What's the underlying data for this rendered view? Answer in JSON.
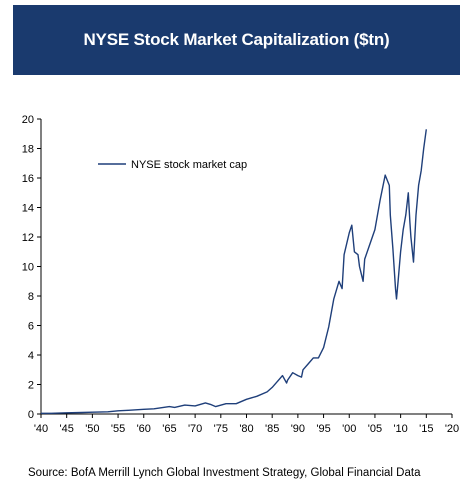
{
  "header": {
    "title": "NYSE Stock Market Capitalization ($tn)"
  },
  "footer": {
    "source": "Source: BofA Merrill Lynch Global Investment Strategy, Global Financial Data"
  },
  "colors": {
    "banner": "#1a3a6e",
    "series_line": "#1f3f7a",
    "axis": "#000000"
  },
  "chart_data": {
    "type": "line",
    "title": "NYSE Stock Market Capitalization ($tn)",
    "xlabel": "",
    "ylabel": "",
    "xlim": [
      1940,
      2020
    ],
    "ylim": [
      0,
      20
    ],
    "grid": false,
    "legend_position": "top-left",
    "x_tick_labels": [
      "'40",
      "'45",
      "'50",
      "'55",
      "'60",
      "'65",
      "'70",
      "'75",
      "'80",
      "'85",
      "'90",
      "'95",
      "'00",
      "'05",
      "'10",
      "'15",
      "'20"
    ],
    "x_ticks": [
      1940,
      1945,
      1950,
      1955,
      1960,
      1965,
      1970,
      1975,
      1980,
      1985,
      1990,
      1995,
      2000,
      2005,
      2010,
      2015,
      2020
    ],
    "y_ticks": [
      0,
      2,
      4,
      6,
      8,
      10,
      12,
      14,
      16,
      18,
      20
    ],
    "series": [
      {
        "name": "NYSE stock market cap",
        "x": [
          1940,
          1942,
          1945,
          1948,
          1950,
          1953,
          1955,
          1957,
          1960,
          1962,
          1965,
          1966,
          1968,
          1970,
          1972,
          1973,
          1974,
          1976,
          1978,
          1980,
          1981,
          1982,
          1984,
          1985,
          1986,
          1987,
          1987.8,
          1988,
          1989,
          1990,
          1990.7,
          1991,
          1992,
          1993,
          1994,
          1995,
          1996,
          1997,
          1998,
          1998.6,
          1999,
          2000,
          2000.5,
          2001,
          2001.7,
          2002,
          2002.7,
          2003,
          2004,
          2005,
          2006,
          2007,
          2007.8,
          2008,
          2008.5,
          2009.0,
          2009.2,
          2009.5,
          2010,
          2010.5,
          2011,
          2011.5,
          2011.8,
          2012,
          2012.5,
          2013,
          2013.5,
          2014,
          2014.5,
          2015
        ],
        "values": [
          0.05,
          0.05,
          0.08,
          0.1,
          0.12,
          0.15,
          0.22,
          0.25,
          0.32,
          0.35,
          0.5,
          0.45,
          0.6,
          0.55,
          0.75,
          0.65,
          0.5,
          0.7,
          0.7,
          1.0,
          1.1,
          1.2,
          1.5,
          1.8,
          2.2,
          2.6,
          2.1,
          2.3,
          2.8,
          2.6,
          2.5,
          3.0,
          3.4,
          3.8,
          3.8,
          4.5,
          5.9,
          7.8,
          9.0,
          8.5,
          10.8,
          12.3,
          12.8,
          11.0,
          10.8,
          10.0,
          9.0,
          10.5,
          11.5,
          12.5,
          14.5,
          16.2,
          15.5,
          13.5,
          11.2,
          8.5,
          7.8,
          9.0,
          11.0,
          12.5,
          13.5,
          15.0,
          13.0,
          12.0,
          10.3,
          13.5,
          15.5,
          16.5,
          18.0,
          19.3
        ]
      }
    ]
  }
}
